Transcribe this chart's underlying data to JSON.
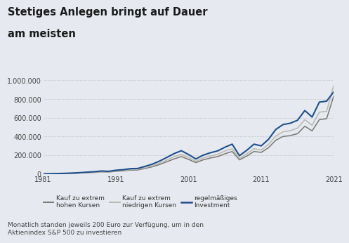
{
  "title_line1": "Stetiges Anlegen bringt auf Dauer",
  "title_line2": "am meisten",
  "footnote": "Monatlich standen jeweils 200 Euro zur Verfügung, um in den\nAktienindex S&P 500 zu investieren",
  "background_color": "#e6eaf0",
  "plot_bg_color": "#e6eaf0",
  "years": [
    1981,
    1982,
    1983,
    1984,
    1985,
    1986,
    1987,
    1988,
    1989,
    1990,
    1991,
    1992,
    1993,
    1994,
    1995,
    1996,
    1997,
    1998,
    1999,
    2000,
    2001,
    2002,
    2003,
    2004,
    2005,
    2006,
    2007,
    2008,
    2009,
    2010,
    2011,
    2012,
    2013,
    2014,
    2015,
    2016,
    2017,
    2018,
    2019,
    2020,
    2021
  ],
  "high_buy": [
    0,
    1000,
    2500,
    4000,
    6000,
    9000,
    13000,
    16000,
    22000,
    20000,
    28000,
    32000,
    40000,
    42000,
    58000,
    76000,
    100000,
    130000,
    160000,
    185000,
    155000,
    120000,
    150000,
    170000,
    185000,
    215000,
    240000,
    150000,
    190000,
    240000,
    230000,
    280000,
    360000,
    400000,
    410000,
    430000,
    510000,
    460000,
    580000,
    590000,
    840000
  ],
  "low_buy": [
    0,
    1200,
    3000,
    4800,
    7200,
    10500,
    15000,
    18500,
    25000,
    22000,
    32000,
    37000,
    46000,
    48000,
    66000,
    86000,
    115000,
    148000,
    183000,
    210000,
    175000,
    135000,
    170000,
    192000,
    210000,
    245000,
    270000,
    165000,
    215000,
    270000,
    255000,
    315000,
    405000,
    450000,
    462000,
    490000,
    580000,
    520000,
    660000,
    670000,
    955000
  ],
  "regular": [
    0,
    1500,
    3800,
    6000,
    9000,
    13000,
    18500,
    23000,
    31000,
    27500,
    39000,
    45000,
    56000,
    58000,
    80000,
    104000,
    137000,
    176000,
    217000,
    248000,
    207000,
    160000,
    200000,
    226000,
    246000,
    285000,
    318000,
    195000,
    252000,
    318000,
    300000,
    370000,
    475000,
    528000,
    542000,
    574000,
    678000,
    608000,
    768000,
    778000,
    880000
  ],
  "high_buy_color": "#7a7872",
  "low_buy_color": "#b8b8b0",
  "regular_color": "#1f4e8c",
  "legend_labels": [
    "Kauf zu extrem\nhohen Kursen",
    "Kauf zu extrem\nniedrigen Kursen",
    "regelmäßiges\nInvestment"
  ],
  "yticks": [
    0,
    200000,
    400000,
    600000,
    800000,
    1000000
  ],
  "ytick_labels": [
    "0",
    "200.000",
    "400.000",
    "600.000",
    "800.000",
    "1.000.000"
  ],
  "xticks": [
    1981,
    1991,
    2001,
    2011,
    2021
  ],
  "ylim": [
    0,
    1060000
  ],
  "xlim": [
    1981,
    2021
  ]
}
